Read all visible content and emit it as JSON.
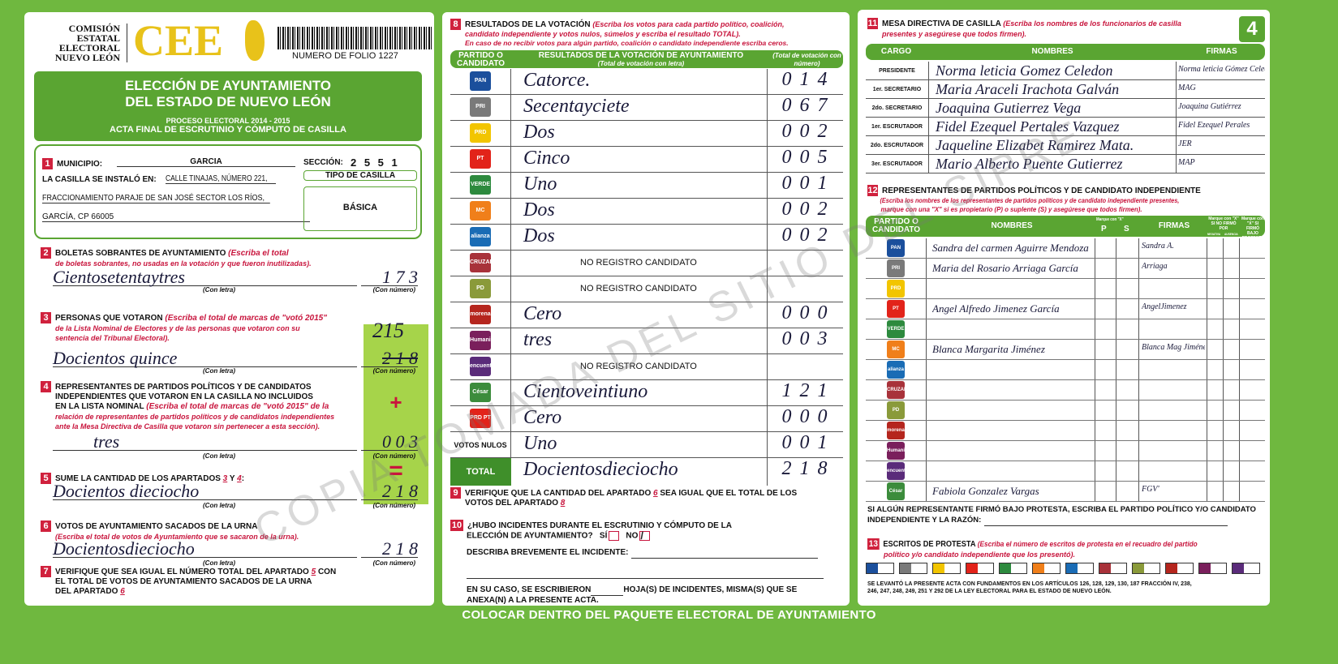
{
  "page_number": "4",
  "header": {
    "org": [
      "COMISIÓN",
      "ESTATAL",
      "ELECTORAL",
      "NUEVO LEÓN"
    ],
    "logo": "CEE",
    "folio": "NUMERO DE FOLIO 1227",
    "title1": "ELECCIÓN DE AYUNTAMIENTO",
    "title2": "DEL ESTADO DE NUEVO LEÓN",
    "process": "PROCESO ELECTORAL 2014 - 2015",
    "act": "ACTA FINAL DE ESCRUTINIO Y CÓMPUTO DE CASILLA"
  },
  "s1": {
    "n": "1",
    "municipio_label": "MUNICIPIO:",
    "municipio": "GARCIA",
    "seccion_label": "SECCIÓN:",
    "seccion": "2 5 5 1",
    "instalo_label": "LA CASILLA SE INSTALÓ EN:",
    "address1": "CALLE TINAJAS, NÚMERO 221,",
    "address2": "FRACCIONAMIENTO PARAJE DE SAN JOSÉ SECTOR LOS RÍOS,",
    "address3": "GARCÍA, CP 66005",
    "tipo_label": "TIPO DE CASILLA",
    "tipo": "BÁSICA"
  },
  "labels": {
    "con_letra": "(Con letra)",
    "con_numero": "(Con número)",
    "plus": "+",
    "equals": "="
  },
  "s2": {
    "n": "2",
    "title": "BOLETAS SOBRANTES DE AYUNTAMIENTO",
    "note1": "(Escriba el total",
    "note2": "de boletas sobrantes, no usadas en la votación y que fueron inutilizadas).",
    "letra": "Cientosetentaytres",
    "numero": "1 7 3"
  },
  "s3": {
    "n": "3",
    "title": "PERSONAS QUE VOTARON",
    "note1": "(Escriba el total de marcas de \"votó 2015\"",
    "note2": "de la Lista Nominal de Electores y de las personas que votaron con su",
    "note3": "sentencia del Tribunal Electoral).",
    "letra": "Docientos quince",
    "numero_corrected": "215",
    "numero_struck": "2 1 8"
  },
  "s4": {
    "n": "4",
    "title1": "REPRESENTANTES DE PARTIDOS POLÍTICOS Y DE CANDIDATOS",
    "title2": "INDEPENDIENTES QUE VOTARON EN LA CASILLA NO INCLUIDOS",
    "title3": "EN LA LISTA NOMINAL",
    "note1": "(Escriba el total de marcas de \"votó 2015\" de la",
    "note2": "relación de representantes de partidos políticos y de candidatos independientes",
    "note3": "ante la Mesa Directiva de Casilla que votaron sin pertenecer a esta sección).",
    "letra": "tres",
    "numero": "0 0 3"
  },
  "s5": {
    "n": "5",
    "title": "SUME LA CANTIDAD DE LOS APARTADOS",
    "a": "3",
    "y": "Y",
    "b": "4",
    "colon": ":",
    "letra": "Docientos dieciocho",
    "numero": "2 1 8"
  },
  "s6": {
    "n": "6",
    "title": "VOTOS DE AYUNTAMIENTO SACADOS DE LA URNA",
    "note": "(Escriba el total de votos de Ayuntamiento que se sacaron de la urna).",
    "letra": "Docientosdieciocho",
    "numero": "2 1 8"
  },
  "s7": {
    "n": "7",
    "l1": "VERIFIQUE QUE SEA IGUAL EL NÚMERO TOTAL DEL APARTADO",
    "a": "5",
    "l1b": "CON",
    "l2": "EL TOTAL DE VOTOS DE AYUNTAMIENTO SACADOS DE LA URNA",
    "l3": "DEL APARTADO",
    "b": "6"
  },
  "s8": {
    "n": "8",
    "title": "RESULTADOS DE LA VOTACIÓN",
    "note1": "(Escriba los votos para cada partido político, coalición,",
    "note2": "candidato independiente y votos nulos, súmelos y escriba el resultado TOTAL).",
    "note3": "En caso de no recibir votos para algún partido, coalición o candidato independiente escriba ceros.",
    "col1": "PARTIDO O CANDIDATO",
    "col2": "RESULTADOS DE LA VOTACIÓN DE AYUNTAMIENTO",
    "col2sub": "(Total de votación con letra)",
    "col3": "(Total de votación con número)",
    "rows": [
      {
        "party": "PAN",
        "color": "#1b4f9c",
        "letra": "Catorce.",
        "numero": "0 1 4"
      },
      {
        "party": "PRI",
        "color": "#7a7a7a",
        "letra": "Secentayciete",
        "numero": "0 6 7"
      },
      {
        "party": "PRD",
        "color": "#f2c500",
        "letra": "Dos",
        "numero": "0 0 2"
      },
      {
        "party": "PT",
        "color": "#e2231a",
        "letra": "Cinco",
        "numero": "0 0 5"
      },
      {
        "party": "VERDE",
        "color": "#2d8a3e",
        "letra": "Uno",
        "numero": "0 0 1"
      },
      {
        "party": "MC",
        "color": "#f07f1a",
        "letra": "Dos",
        "numero": "0 0 2"
      },
      {
        "party": "alianza",
        "color": "#1a6cb5",
        "letra": "Dos",
        "numero": "0 0 2"
      },
      {
        "party": "CRUZADA",
        "color": "#a8323a",
        "letra": "NO REGISTRO CANDIDATO",
        "numero": ""
      },
      {
        "party": "PD",
        "color": "#8a9a3a",
        "letra": "NO REGISTRO CANDIDATO",
        "numero": ""
      },
      {
        "party": "morena",
        "color": "#b5261e",
        "letra": "Cero",
        "numero": "0 0 0"
      },
      {
        "party": "Humanista",
        "color": "#7a1f5c",
        "letra": "tres",
        "numero": "0 0 3"
      },
      {
        "party": "encuentro",
        "color": "#5a2b7a",
        "letra": "NO REGISTRO CANDIDATO",
        "numero": ""
      },
      {
        "party": "César Valdés",
        "color": "#3c8c3c",
        "letra": "Cientoveintiuno",
        "numero": "1 2 1"
      },
      {
        "party": "PRD PT",
        "color": "#e2231a",
        "letra": "Cero",
        "numero": "0 0 0"
      },
      {
        "party": "VOTOS NULOS",
        "color": "",
        "letra": "Uno",
        "numero": "0 0 1"
      }
    ],
    "total": {
      "label": "TOTAL",
      "letra": "Docientosdieciocho",
      "numero": "2 1 8"
    }
  },
  "s9": {
    "n": "9",
    "l1": "VERIFIQUE QUE LA CANTIDAD DEL APARTADO",
    "a": "6",
    "l1b": "SEA IGUAL QUE EL TOTAL DE LOS",
    "l2": "VOTOS DEL APARTADO",
    "b": "8"
  },
  "s10": {
    "n": "10",
    "l1": "¿HUBO INCIDENTES DURANTE EL ESCRUTINIO Y CÓMPUTO DE LA",
    "l2": "ELECCIÓN DE AYUNTAMIENTO?",
    "si": "SÍ",
    "no": "NO",
    "si_checked": false,
    "no_checked": true,
    "describe": "DESCRIBA BREVEMENTE EL INCIDENTE:",
    "l3": "EN SU CASO, SE ESCRIBIERON",
    "l3b": "HOJA(S) DE INCIDENTES, MISMA(S) QUE SE",
    "l4": "ANEXA(N) A LA PRESENTE ACTA."
  },
  "s11": {
    "n": "11",
    "title": "MESA DIRECTIVA DE CASILLA",
    "note1": "(Escriba los nombres de los funcionarios de casilla",
    "note2": "presentes y asegúrese que todos firmen).",
    "col1": "CARGO",
    "col2": "NOMBRES",
    "col3": "FIRMAS",
    "rows": [
      {
        "cargo": "PRESIDENTE",
        "nombre": "Norma leticia Gomez Celedon",
        "firma": "Norma leticia Gómez Celedon"
      },
      {
        "cargo": "1er. SECRETARIO",
        "nombre": "Maria Araceli Irachota Galván",
        "firma": "MAG"
      },
      {
        "cargo": "2do. SECRETARIO",
        "nombre": "Joaquina Gutierrez Vega",
        "firma": "Joaquina Gutiérrez"
      },
      {
        "cargo": "1er. ESCRUTADOR",
        "nombre": "Fidel Ezequel Pertales Vazquez",
        "firma": "Fidel Ezequel Perales"
      },
      {
        "cargo": "2do. ESCRUTADOR",
        "nombre": "Jaqueline Elizabet Ramirez Mata.",
        "firma": "JER"
      },
      {
        "cargo": "3er. ESCRUTADOR",
        "nombre": "Mario Alberto Puente Gutierrez",
        "firma": "MAP"
      }
    ]
  },
  "s12": {
    "n": "12",
    "title": "REPRESENTANTES DE PARTIDOS POLÍTICOS Y DE CANDIDATO INDEPENDIENTE",
    "note1": "(Escriba los nombres de los representantes de partidos políticos y de candidato independiente presentes,",
    "note2": "marque con una \"X\" si es propietario (P) o suplente (S) y asegúrese que todos firmen).",
    "col1": "PARTIDO O CANDIDATO",
    "col2": "NOMBRES",
    "col_ps": "Marque con \"X\"",
    "p": "P",
    "s": "S",
    "col3": "FIRMAS",
    "col4": "Marque con \"X\" SI NO FIRMÓ POR",
    "col4a": "NEGATIVA",
    "col4b": "AUSENCIA",
    "col5": "Marque con \"X\" SI FIRMÓ BAJO PROTESTA",
    "rows": [
      {
        "party": "PAN",
        "color": "#1b4f9c",
        "nombre": "Sandra del carmen Aguirre Mendoza",
        "firma": "Sandra A."
      },
      {
        "party": "PRI",
        "color": "#7a7a7a",
        "nombre": "Maria del Rosario Arriaga García",
        "firma": "Arriaga"
      },
      {
        "party": "PRD",
        "color": "#f2c500",
        "nombre": "",
        "firma": ""
      },
      {
        "party": "PT",
        "color": "#e2231a",
        "nombre": "Angel Alfredo Jimenez García",
        "firma": "AngelJimenez"
      },
      {
        "party": "VERDE",
        "color": "#2d8a3e",
        "nombre": "",
        "firma": ""
      },
      {
        "party": "MC",
        "color": "#f07f1a",
        "nombre": "Blanca Margarita Jiménez",
        "firma": "Blanca Mag Jiménez"
      },
      {
        "party": "alianza",
        "color": "#1a6cb5",
        "nombre": "",
        "firma": ""
      },
      {
        "party": "CRUZADA",
        "color": "#a8323a",
        "nombre": "",
        "firma": ""
      },
      {
        "party": "PD",
        "color": "#8a9a3a",
        "nombre": "",
        "firma": ""
      },
      {
        "party": "morena",
        "color": "#b5261e",
        "nombre": "",
        "firma": ""
      },
      {
        "party": "Humanista",
        "color": "#7a1f5c",
        "nombre": "",
        "firma": ""
      },
      {
        "party": "encuentro",
        "color": "#5a2b7a",
        "nombre": "",
        "firma": ""
      },
      {
        "party": "César Valdés",
        "color": "#3c8c3c",
        "nombre": "Fabiola Gonzalez Vargas",
        "firma": "FGV'"
      }
    ],
    "protesta_l1": "SI ALGÚN REPRESENTANTE FIRMÓ BAJO PROTESTA, ESCRIBA EL PARTIDO POLÍTICO Y/O CANDIDATO",
    "protesta_l2": "INDEPENDIENTE Y LA RAZÓN:"
  },
  "s13": {
    "n": "13",
    "title": "ESCRITOS DE PROTESTA",
    "note1": "(Escriba el número de escritos de protesta en el recuadro del partido",
    "note2": "político y/o candidato independiente que los presentó).",
    "footer1": "SE LEVANTÓ LA PRESENTE ACTA CON FUNDAMENTOS EN LOS ARTÍCULOS 126, 128, 129, 130, 187 FRACCIÓN IV, 238,",
    "footer2": "246, 247, 248, 249, 251 Y 292 DE LA LEY ELECTORAL PARA EL ESTADO DE NUEVO LEÓN."
  },
  "banner": "COLOCAR DENTRO DEL PAQUETE ELECTORAL DE AYUNTAMIENTO",
  "watermark": "COPIA TOMADA DEL SITIO DEL SIPRE",
  "colors": {
    "green": "#5aa532",
    "background": "#6fb83f",
    "red": "#c8153d",
    "gold": "#e8c21a",
    "lime": "#a6d44a"
  }
}
